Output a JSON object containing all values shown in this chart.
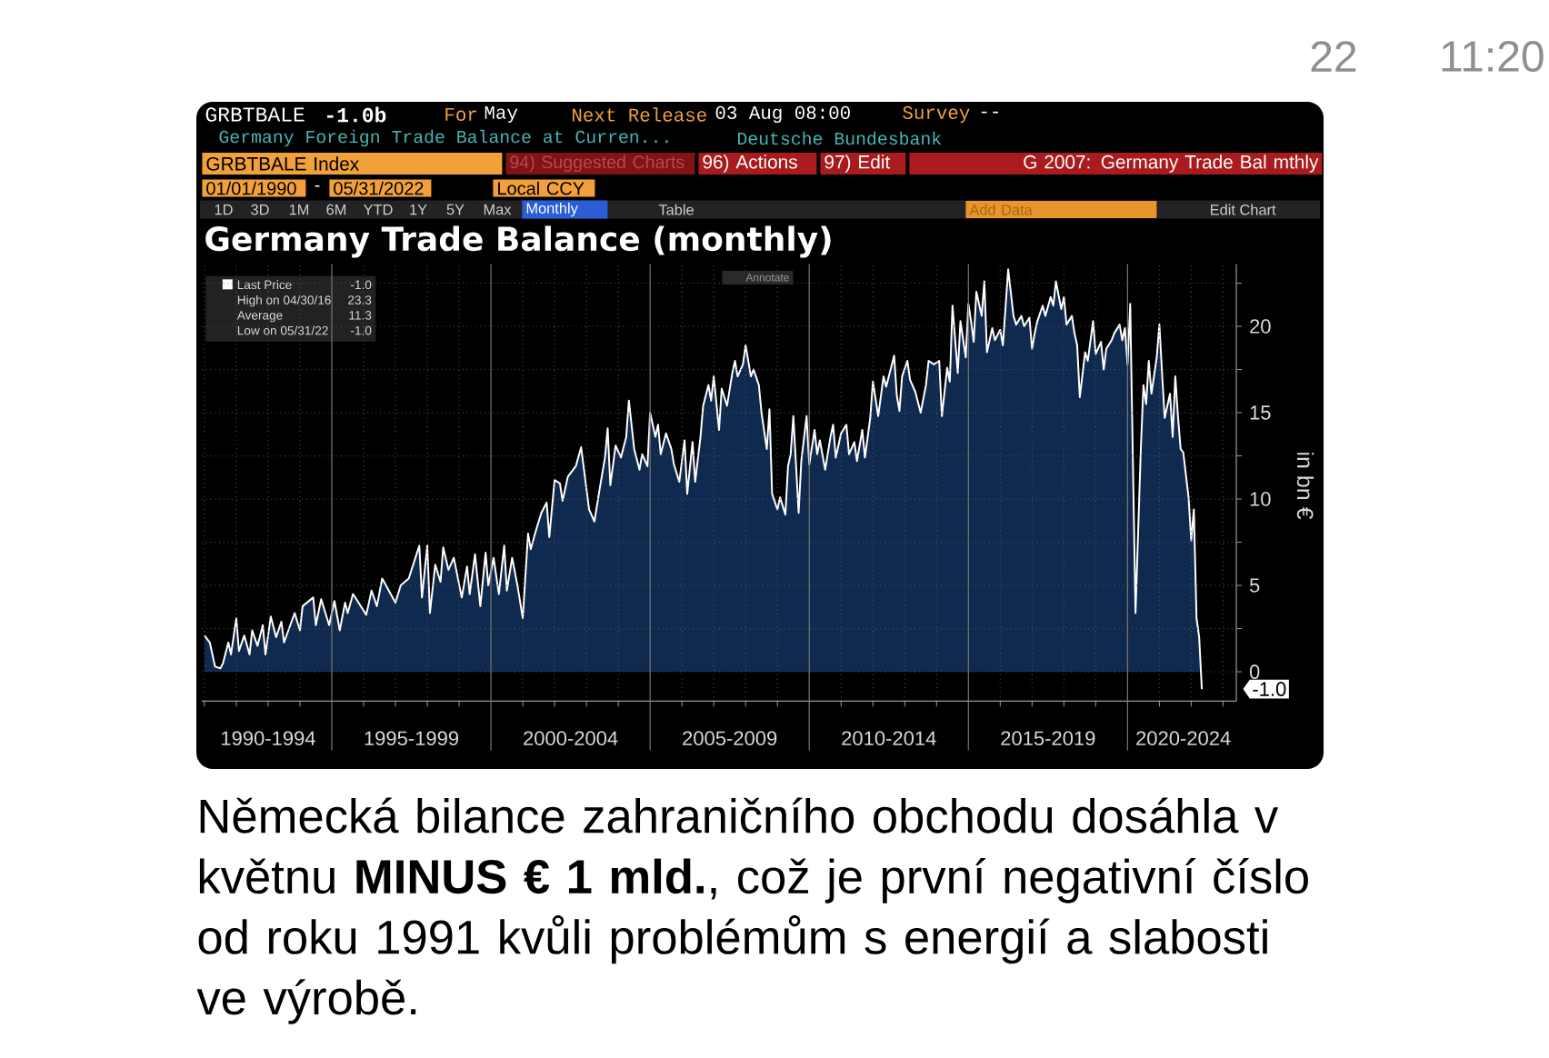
{
  "chart_data": {
    "type": "area",
    "title": "Germany Trade Balance (monthly)",
    "ylabel": "in bn €",
    "x": [
      "1991-01",
      "1991-03",
      "1991-05",
      "1991-07",
      "1991-08",
      "1991-10",
      "1991-11",
      "1992-01",
      "1992-02",
      "1992-04",
      "1992-06",
      "1992-07",
      "1992-09",
      "1992-11",
      "1992-12",
      "1993-02",
      "1993-04",
      "1993-06",
      "1993-07",
      "1993-11",
      "1994-01",
      "1994-02",
      "1994-06",
      "1994-07",
      "1994-09",
      "1994-12",
      "1995-02",
      "1995-04",
      "1995-06",
      "1995-07",
      "1995-09",
      "1996-02",
      "1996-04",
      "1996-06",
      "1996-08",
      "1997-01",
      "1997-03",
      "1997-06",
      "1997-10",
      "1997-11",
      "1998-01",
      "1998-02",
      "1998-04",
      "1998-06",
      "1998-07",
      "1998-09",
      "1998-11",
      "1999-02",
      "1999-04",
      "1999-05",
      "1999-07",
      "1999-09",
      "1999-11",
      "1999-12",
      "2000-02",
      "2000-04",
      "2000-06",
      "2000-07",
      "2000-09",
      "2000-11",
      "2001-01",
      "2001-03",
      "2001-04",
      "2001-06",
      "2001-08",
      "2001-10",
      "2001-11",
      "2002-01",
      "2002-03",
      "2002-04",
      "2002-06",
      "2002-09",
      "2002-11",
      "2003-01",
      "2003-02",
      "2003-04",
      "2003-06",
      "2003-08",
      "2003-09",
      "2003-10",
      "2003-12",
      "2004-02",
      "2004-04",
      "2004-05",
      "2004-07",
      "2004-09",
      "2004-10",
      "2004-12",
      "2005-01",
      "2005-03",
      "2005-04",
      "2005-05",
      "2005-07",
      "2005-09",
      "2005-10",
      "2005-12",
      "2006-02",
      "2006-03",
      "2006-05",
      "2006-06",
      "2006-08",
      "2006-09",
      "2006-11",
      "2006-12",
      "2007-01",
      "2007-03",
      "2007-04",
      "2007-06",
      "2007-08",
      "2007-09",
      "2007-10",
      "2007-12",
      "2008-01",
      "2008-03",
      "2008-04",
      "2008-06",
      "2008-07",
      "2008-09",
      "2008-10",
      "2008-11",
      "2009-01",
      "2009-02",
      "2009-04",
      "2009-05",
      "2009-06",
      "2009-07",
      "2009-09",
      "2009-10",
      "2009-12",
      "2010-01",
      "2010-03",
      "2010-04",
      "2010-05",
      "2010-07",
      "2010-09",
      "2010-10",
      "2010-11",
      "2011-01",
      "2011-03",
      "2011-04",
      "2011-06",
      "2011-07",
      "2011-09",
      "2011-10",
      "2011-12",
      "2012-01",
      "2012-03",
      "2012-05",
      "2012-06",
      "2012-09",
      "2012-10",
      "2012-11",
      "2012-12",
      "2013-02",
      "2013-03",
      "2013-05",
      "2013-07",
      "2013-09",
      "2013-10",
      "2013-12",
      "2014-02",
      "2014-03",
      "2014-05",
      "2014-06",
      "2014-07",
      "2014-09",
      "2014-10",
      "2014-12",
      "2015-01",
      "2015-02",
      "2015-03",
      "2015-04",
      "2015-06",
      "2015-07",
      "2015-08",
      "2015-10",
      "2015-11",
      "2016-01",
      "2016-02",
      "2016-04",
      "2016-06",
      "2016-07",
      "2016-09",
      "2016-10",
      "2016-12",
      "2017-01",
      "2017-02",
      "2017-03",
      "2017-05",
      "2017-06",
      "2017-08",
      "2017-09",
      "2017-10",
      "2017-12",
      "2018-01",
      "2018-02",
      "2018-04",
      "2018-05",
      "2018-06",
      "2018-07",
      "2018-09",
      "2018-10",
      "2018-12",
      "2019-01",
      "2019-03",
      "2019-04",
      "2019-05",
      "2019-07",
      "2019-08",
      "2019-10",
      "2019-11",
      "2019-12",
      "2020-01",
      "2020-02",
      "2020-04",
      "2020-06",
      "2020-07",
      "2020-08",
      "2020-09",
      "2020-10",
      "2020-12",
      "2021-01",
      "2021-02",
      "2021-03",
      "2021-05",
      "2021-06",
      "2021-07",
      "2021-08",
      "2021-09",
      "2021-10",
      "2021-12",
      "2022-01",
      "2022-02",
      "2022-03",
      "2022-04",
      "2022-05"
    ],
    "series": [
      {
        "name": "Last Price",
        "color": "#ffffff",
        "values": [
          2.1,
          1.7,
          0.3,
          0.2,
          0.5,
          1.7,
          1.0,
          3.1,
          1.2,
          2.1,
          1.0,
          2.4,
          1.5,
          2.7,
          1.0,
          3.2,
          2.0,
          2.9,
          1.7,
          3.4,
          2.4,
          3.8,
          4.3,
          2.7,
          4.2,
          2.7,
          4.1,
          2.4,
          4.0,
          3.4,
          4.5,
          3.3,
          4.7,
          3.8,
          5.4,
          4.0,
          5.0,
          5.4,
          7.3,
          4.3,
          7.3,
          3.4,
          6.2,
          5.2,
          7.2,
          5.9,
          6.6,
          4.3,
          6.1,
          4.5,
          6.8,
          3.8,
          6.9,
          5.0,
          6.6,
          4.5,
          7.3,
          4.7,
          6.6,
          5.0,
          3.1,
          8.0,
          7.1,
          8.2,
          9.2,
          9.8,
          7.8,
          11.1,
          10.9,
          9.9,
          11.3,
          11.9,
          13.0,
          10.6,
          9.4,
          8.7,
          10.6,
          12.4,
          14.1,
          10.8,
          13.1,
          12.4,
          13.6,
          15.7,
          12.9,
          11.7,
          12.6,
          11.9,
          15.0,
          13.6,
          14.3,
          12.6,
          13.8,
          12.9,
          12.0,
          11.0,
          13.4,
          10.3,
          13.3,
          11.0,
          13.6,
          15.4,
          16.6,
          15.7,
          17.1,
          14.0,
          16.4,
          15.4,
          17.3,
          18.0,
          17.1,
          17.8,
          18.9,
          17.1,
          17.5,
          16.6,
          15.0,
          12.9,
          15.2,
          10.3,
          9.4,
          10.1,
          9.1,
          11.9,
          12.6,
          14.8,
          9.2,
          12.2,
          14.8,
          12.0,
          14.0,
          12.6,
          13.4,
          11.7,
          13.6,
          14.3,
          12.4,
          13.8,
          14.3,
          12.6,
          13.3,
          12.2,
          14.0,
          12.4,
          14.7,
          16.8,
          14.8,
          17.1,
          16.5,
          18.3,
          16.0,
          15.1,
          17.1,
          18.0,
          16.9,
          16.2,
          15.0,
          16.6,
          18.0,
          17.8,
          18.0,
          14.8,
          17.6,
          16.8,
          21.2,
          17.3,
          20.3,
          18.2,
          21.3,
          20.3,
          19.1,
          22.0,
          20.6,
          22.6,
          18.5,
          19.9,
          19.2,
          19.8,
          18.9,
          23.3,
          20.6,
          20.1,
          20.6,
          20.0,
          20.5,
          18.7,
          19.6,
          20.3,
          21.2,
          20.6,
          21.7,
          21.2,
          22.6,
          21.0,
          21.7,
          20.1,
          20.6,
          19.6,
          18.9,
          15.9,
          18.5,
          18.0,
          20.3,
          18.4,
          19.1,
          17.5,
          18.7,
          19.2,
          19.6,
          20.1,
          19.2,
          19.9,
          17.8,
          21.3,
          3.4,
          12.9,
          16.6,
          15.5,
          18.0,
          16.1,
          18.2,
          20.1,
          17.3,
          14.7,
          16.1,
          13.6,
          17.1,
          14.8,
          12.9,
          12.7,
          10.1,
          7.6,
          9.4,
          3.1,
          2.0,
          -1.0
        ]
      }
    ],
    "xlim": [
      "1990-12",
      "2023-06"
    ],
    "xticks": [
      {
        "value": "1991-01",
        "label": null
      },
      {
        "value": "1992-01",
        "label": null
      },
      {
        "value": "1993-01",
        "label": null
      },
      {
        "value": "1993-01",
        "label": "1990-1994"
      },
      {
        "value": "1994-01",
        "label": null
      },
      {
        "value": "1995-01",
        "label": null
      },
      {
        "value": "1996-01",
        "label": null
      },
      {
        "value": "1997-01",
        "label": null
      },
      {
        "value": "1997-07",
        "label": "1995-1999"
      },
      {
        "value": "1998-01",
        "label": null
      },
      {
        "value": "1999-01",
        "label": null
      },
      {
        "value": "2000-01",
        "label": null
      },
      {
        "value": "2001-01",
        "label": null
      },
      {
        "value": "2002-01",
        "label": null
      },
      {
        "value": "2002-07",
        "label": "2000-2004"
      },
      {
        "value": "2003-01",
        "label": null
      },
      {
        "value": "2004-01",
        "label": null
      },
      {
        "value": "2005-01",
        "label": null
      },
      {
        "value": "2006-01",
        "label": null
      },
      {
        "value": "2007-01",
        "label": null
      },
      {
        "value": "2007-07",
        "label": "2005-2009"
      },
      {
        "value": "2008-01",
        "label": null
      },
      {
        "value": "2009-01",
        "label": null
      },
      {
        "value": "2010-01",
        "label": null
      },
      {
        "value": "2011-01",
        "label": null
      },
      {
        "value": "2012-01",
        "label": null
      },
      {
        "value": "2012-07",
        "label": "2010-2014"
      },
      {
        "value": "2013-01",
        "label": null
      },
      {
        "value": "2014-01",
        "label": null
      },
      {
        "value": "2015-01",
        "label": null
      },
      {
        "value": "2016-01",
        "label": null
      },
      {
        "value": "2017-01",
        "label": null
      },
      {
        "value": "2017-07",
        "label": "2015-2019"
      },
      {
        "value": "2018-01",
        "label": null
      },
      {
        "value": "2019-01",
        "label": null
      },
      {
        "value": "2020-01",
        "label": null
      },
      {
        "value": "2021-01",
        "label": null
      },
      {
        "value": "2021-10",
        "label": "2020-2024"
      },
      {
        "value": "2022-01",
        "label": null
      },
      {
        "value": "2023-01",
        "label": null
      }
    ],
    "ylim": [
      -1.7,
      23.6
    ],
    "yticks": [
      0,
      {
        "value": 2.5,
        "label": null
      },
      5,
      {
        "value": 7.5,
        "label": null
      },
      10,
      {
        "value": 12.5,
        "label": null
      },
      15,
      {
        "value": 17.5,
        "label": null
      },
      20,
      {
        "value": 22.5,
        "label": null
      }
    ],
    "grid": true,
    "legend": "top left",
    "annotations": [
      "22",
      "11:20",
      "GRBTBALE",
      "-1.0b",
      "For",
      "May",
      "Next Release",
      "03 Aug 08:00",
      "Survey",
      "--",
      "Germany Foreign Trade Balance at Curren...",
      "Deutsche Bundesbank",
      "GRBTBALE Index",
      "94) Suggested Charts",
      "96) Actions",
      "97) Edit",
      "G 2007: Germany Trade Bal mthly",
      "01/01/1990",
      "-",
      "05/31/2022",
      "Local CCY",
      "1D",
      "3D",
      "1M",
      "6M",
      "YTD",
      "1Y",
      "5Y",
      "Max",
      "Monthly",
      "Table",
      "Add Data",
      "Edit Chart",
      "Annotate",
      "-1.0",
      "High on 04/30/16",
      "23.3",
      "Average",
      "11.3",
      "Low on 05/31/22",
      "-1.0",
      "-1.0",
      "Německá bilance zahraničního obchodu dosáhla v květnu **MINUS € 1 mld.**, což je první negativní číslo od roku 1991 kvůli problémům s energií a slabosti ve výrobě."
    ]
  }
}
